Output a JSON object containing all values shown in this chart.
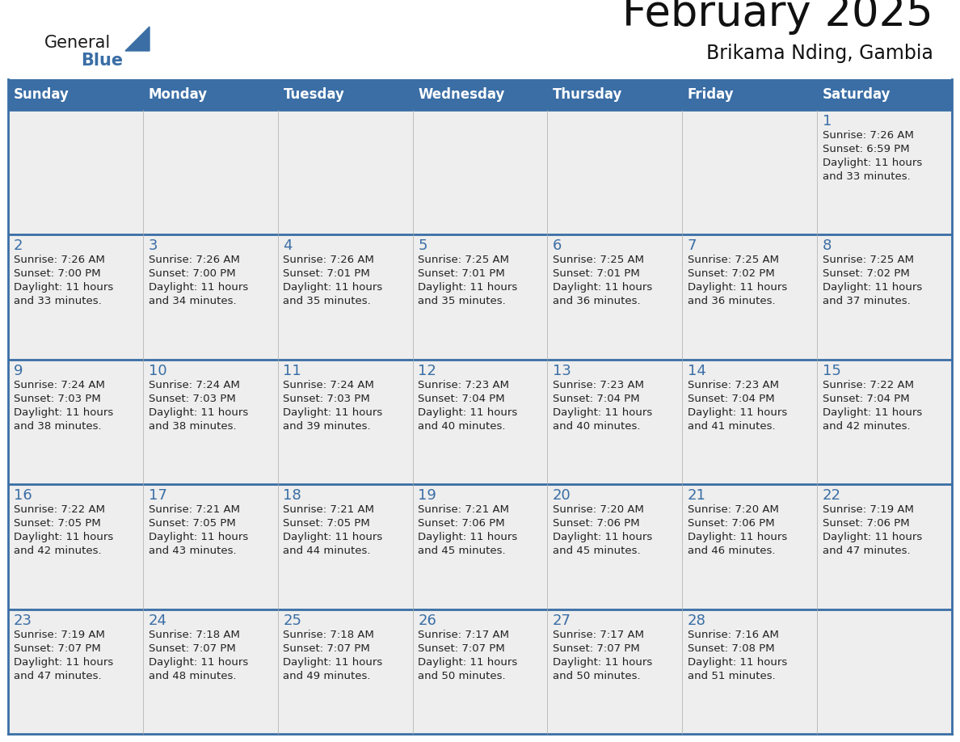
{
  "title": "February 2025",
  "subtitle": "Brikama Nding, Gambia",
  "header_color": "#3A6EA5",
  "header_text_color": "#FFFFFF",
  "days_of_week": [
    "Sunday",
    "Monday",
    "Tuesday",
    "Wednesday",
    "Thursday",
    "Friday",
    "Saturday"
  ],
  "background_color": "#FFFFFF",
  "cell_bg_color": "#EEEEEE",
  "cell_border_color": "#3A6EA5",
  "day_number_color": "#3A6EA5",
  "info_text_color": "#222222",
  "title_fontsize": 36,
  "subtitle_fontsize": 16,
  "header_fontsize": 12,
  "day_number_fontsize": 13,
  "info_fontsize": 9.5,
  "logo_general_color": "#1a1a1a",
  "logo_blue_color": "#3A6EA5",
  "logo_triangle_color": "#3A6EA5",
  "calendar_data": [
    [
      {
        "day": null,
        "sunrise": null,
        "sunset": null,
        "daylight": null
      },
      {
        "day": null,
        "sunrise": null,
        "sunset": null,
        "daylight": null
      },
      {
        "day": null,
        "sunrise": null,
        "sunset": null,
        "daylight": null
      },
      {
        "day": null,
        "sunrise": null,
        "sunset": null,
        "daylight": null
      },
      {
        "day": null,
        "sunrise": null,
        "sunset": null,
        "daylight": null
      },
      {
        "day": null,
        "sunrise": null,
        "sunset": null,
        "daylight": null
      },
      {
        "day": 1,
        "sunrise": "7:26 AM",
        "sunset": "6:59 PM",
        "daylight": "11 hours and 33 minutes."
      }
    ],
    [
      {
        "day": 2,
        "sunrise": "7:26 AM",
        "sunset": "7:00 PM",
        "daylight": "11 hours and 33 minutes."
      },
      {
        "day": 3,
        "sunrise": "7:26 AM",
        "sunset": "7:00 PM",
        "daylight": "11 hours and 34 minutes."
      },
      {
        "day": 4,
        "sunrise": "7:26 AM",
        "sunset": "7:01 PM",
        "daylight": "11 hours and 35 minutes."
      },
      {
        "day": 5,
        "sunrise": "7:25 AM",
        "sunset": "7:01 PM",
        "daylight": "11 hours and 35 minutes."
      },
      {
        "day": 6,
        "sunrise": "7:25 AM",
        "sunset": "7:01 PM",
        "daylight": "11 hours and 36 minutes."
      },
      {
        "day": 7,
        "sunrise": "7:25 AM",
        "sunset": "7:02 PM",
        "daylight": "11 hours and 36 minutes."
      },
      {
        "day": 8,
        "sunrise": "7:25 AM",
        "sunset": "7:02 PM",
        "daylight": "11 hours and 37 minutes."
      }
    ],
    [
      {
        "day": 9,
        "sunrise": "7:24 AM",
        "sunset": "7:03 PM",
        "daylight": "11 hours and 38 minutes."
      },
      {
        "day": 10,
        "sunrise": "7:24 AM",
        "sunset": "7:03 PM",
        "daylight": "11 hours and 38 minutes."
      },
      {
        "day": 11,
        "sunrise": "7:24 AM",
        "sunset": "7:03 PM",
        "daylight": "11 hours and 39 minutes."
      },
      {
        "day": 12,
        "sunrise": "7:23 AM",
        "sunset": "7:04 PM",
        "daylight": "11 hours and 40 minutes."
      },
      {
        "day": 13,
        "sunrise": "7:23 AM",
        "sunset": "7:04 PM",
        "daylight": "11 hours and 40 minutes."
      },
      {
        "day": 14,
        "sunrise": "7:23 AM",
        "sunset": "7:04 PM",
        "daylight": "11 hours and 41 minutes."
      },
      {
        "day": 15,
        "sunrise": "7:22 AM",
        "sunset": "7:04 PM",
        "daylight": "11 hours and 42 minutes."
      }
    ],
    [
      {
        "day": 16,
        "sunrise": "7:22 AM",
        "sunset": "7:05 PM",
        "daylight": "11 hours and 42 minutes."
      },
      {
        "day": 17,
        "sunrise": "7:21 AM",
        "sunset": "7:05 PM",
        "daylight": "11 hours and 43 minutes."
      },
      {
        "day": 18,
        "sunrise": "7:21 AM",
        "sunset": "7:05 PM",
        "daylight": "11 hours and 44 minutes."
      },
      {
        "day": 19,
        "sunrise": "7:21 AM",
        "sunset": "7:06 PM",
        "daylight": "11 hours and 45 minutes."
      },
      {
        "day": 20,
        "sunrise": "7:20 AM",
        "sunset": "7:06 PM",
        "daylight": "11 hours and 45 minutes."
      },
      {
        "day": 21,
        "sunrise": "7:20 AM",
        "sunset": "7:06 PM",
        "daylight": "11 hours and 46 minutes."
      },
      {
        "day": 22,
        "sunrise": "7:19 AM",
        "sunset": "7:06 PM",
        "daylight": "11 hours and 47 minutes."
      }
    ],
    [
      {
        "day": 23,
        "sunrise": "7:19 AM",
        "sunset": "7:07 PM",
        "daylight": "11 hours and 47 minutes."
      },
      {
        "day": 24,
        "sunrise": "7:18 AM",
        "sunset": "7:07 PM",
        "daylight": "11 hours and 48 minutes."
      },
      {
        "day": 25,
        "sunrise": "7:18 AM",
        "sunset": "7:07 PM",
        "daylight": "11 hours and 49 minutes."
      },
      {
        "day": 26,
        "sunrise": "7:17 AM",
        "sunset": "7:07 PM",
        "daylight": "11 hours and 50 minutes."
      },
      {
        "day": 27,
        "sunrise": "7:17 AM",
        "sunset": "7:07 PM",
        "daylight": "11 hours and 50 minutes."
      },
      {
        "day": 28,
        "sunrise": "7:16 AM",
        "sunset": "7:08 PM",
        "daylight": "11 hours and 51 minutes."
      },
      {
        "day": null,
        "sunrise": null,
        "sunset": null,
        "daylight": null
      }
    ]
  ]
}
